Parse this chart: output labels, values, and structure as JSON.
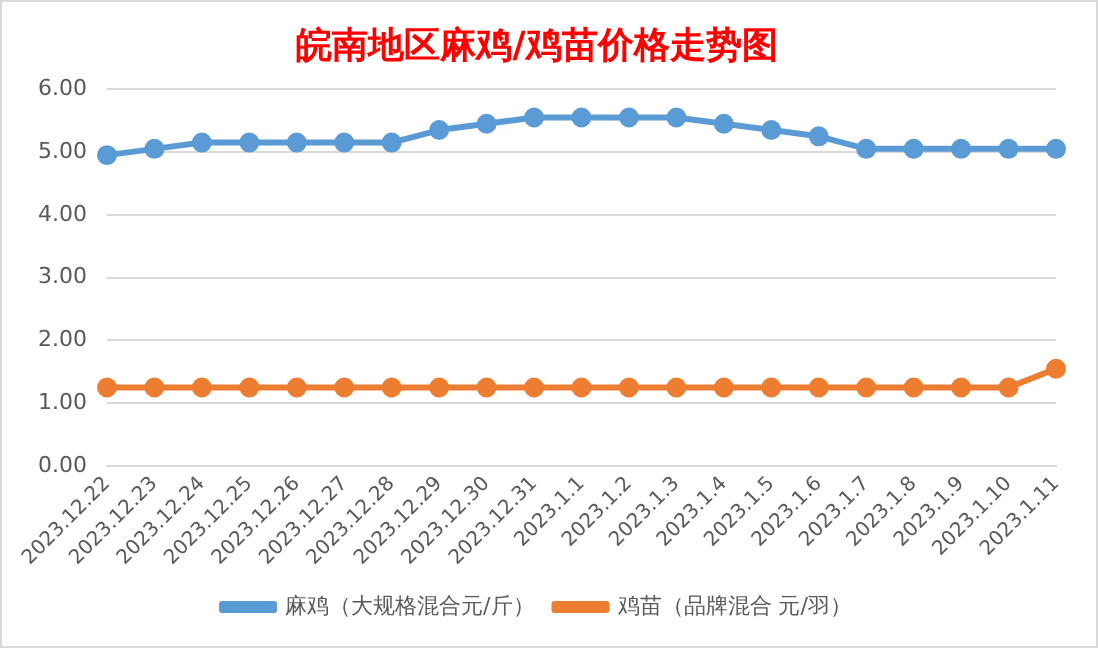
{
  "chart_data": {
    "type": "line",
    "title": "皖南地区麻鸡/鸡苗价格走势图",
    "categories": [
      "2023.12.22",
      "2023.12.23",
      "2023.12.24",
      "2023.12.25",
      "2023.12.26",
      "2023.12.27",
      "2023.12.28",
      "2023.12.29",
      "2023.12.30",
      "2023.12.31",
      "2023.1.1",
      "2023.1.2",
      "2023.1.3",
      "2023.1.4",
      "2023.1.5",
      "2023.1.6",
      "2023.1.7",
      "2023.1.8",
      "2023.1.9",
      "2023.1.10",
      "2023.1.11"
    ],
    "series": [
      {
        "name": "麻鸡（大规格混合元/斤）",
        "color": "#5b9bd5",
        "values": [
          4.95,
          5.05,
          5.15,
          5.15,
          5.15,
          5.15,
          5.15,
          5.35,
          5.45,
          5.55,
          5.55,
          5.55,
          5.55,
          5.45,
          5.35,
          5.25,
          5.05,
          5.05,
          5.05,
          5.05,
          5.05
        ]
      },
      {
        "name": "鸡苗（品牌混合 元/羽）",
        "color": "#ed7d31",
        "values": [
          1.25,
          1.25,
          1.25,
          1.25,
          1.25,
          1.25,
          1.25,
          1.25,
          1.25,
          1.25,
          1.25,
          1.25,
          1.25,
          1.25,
          1.25,
          1.25,
          1.25,
          1.25,
          1.25,
          1.25,
          1.55
        ]
      }
    ],
    "ylim": [
      0,
      6
    ],
    "yticks": [
      {
        "value": 0,
        "label": "0.00"
      },
      {
        "value": 1,
        "label": "1.00"
      },
      {
        "value": 2,
        "label": "2.00"
      },
      {
        "value": 3,
        "label": "3.00"
      },
      {
        "value": 4,
        "label": "4.00"
      },
      {
        "value": 5,
        "label": "5.00"
      },
      {
        "value": 6,
        "label": "6.00"
      }
    ],
    "grid": "y",
    "legend": "bottom",
    "marker": "circle",
    "line_style": "solid"
  }
}
